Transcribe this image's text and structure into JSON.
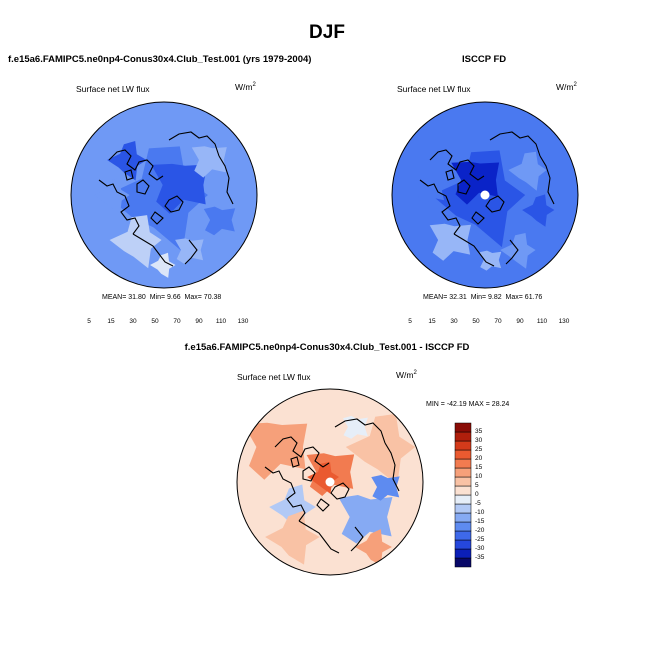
{
  "title": "DJF",
  "panels": {
    "model": {
      "title": "f.e15a6.FAMIPC5.ne0np4-Conus30x4.Club_Test.001 (yrs 1979-2004)",
      "variable": "Surface net LW flux",
      "units_base": "W/m",
      "units_exp": "2",
      "stats": {
        "mean_label": "MEAN=",
        "mean": "31.80",
        "min_label": "Min=",
        "min": "9.66",
        "max_label": "Max=",
        "max": "70.38"
      }
    },
    "obs": {
      "title": "ISCCP FD",
      "variable": "Surface net LW flux",
      "units_base": "W/m",
      "units_exp": "2",
      "stats": {
        "mean_label": "MEAN=",
        "mean": "32.31",
        "min_label": "Min=",
        "min": "9.82",
        "max_label": "Max=",
        "max": "61.76"
      }
    },
    "diff": {
      "title": "f.e15a6.FAMIPC5.ne0np4-Conus30x4.Club_Test.001 - ISCCP FD",
      "variable": "Surface net LW flux",
      "units_base": "W/m",
      "units_exp": "2",
      "stats": {
        "min_label": "MIN =",
        "min": "-42.19",
        "max_label": "MAX =",
        "max": "28.24"
      }
    }
  },
  "chart_data": [
    {
      "type": "heatmap",
      "projection": "polar-stereographic-north",
      "title": "Surface net LW flux — model (DJF)",
      "colorbar": {
        "orientation": "horizontal",
        "levels": [
          5,
          10,
          15,
          20,
          30,
          40,
          50,
          60,
          70,
          80,
          90,
          100,
          110,
          120,
          130
        ],
        "tick_labels": [
          "5",
          "15",
          "30",
          "50",
          "70",
          "90",
          "110",
          "130"
        ],
        "colors": [
          "#08086a",
          "#0a23c8",
          "#2a55e6",
          "#4a79f0",
          "#6f99f5",
          "#97b6f7",
          "#bdd0f7",
          "#dce6f8",
          "#f3f6fb",
          "#fcd9c6",
          "#f9b398",
          "#f08a67",
          "#e0583e",
          "#c42a1c",
          "#980d0b",
          "#6b0505"
        ]
      },
      "stats": {
        "mean": 31.8,
        "min": 9.66,
        "max": 70.38
      }
    },
    {
      "type": "heatmap",
      "projection": "polar-stereographic-north",
      "title": "Surface net LW flux — ISCCP FD (DJF)",
      "colorbar": {
        "orientation": "horizontal",
        "levels": [
          5,
          10,
          15,
          20,
          30,
          40,
          50,
          60,
          70,
          80,
          90,
          100,
          110,
          120,
          130
        ],
        "tick_labels": [
          "5",
          "15",
          "30",
          "50",
          "70",
          "90",
          "110",
          "130"
        ],
        "colors": [
          "#08086a",
          "#0a23c8",
          "#2a55e6",
          "#4a79f0",
          "#6f99f5",
          "#97b6f7",
          "#bdd0f7",
          "#dce6f8",
          "#f3f6fb",
          "#fcd9c6",
          "#f9b398",
          "#f08a67",
          "#e0583e",
          "#c42a1c",
          "#980d0b",
          "#6b0505"
        ]
      },
      "stats": {
        "mean": 32.31,
        "min": 9.82,
        "max": 61.76
      }
    },
    {
      "type": "heatmap",
      "projection": "polar-stereographic-north",
      "title": "Surface net LW flux — model minus ISCCP FD (DJF)",
      "colorbar": {
        "orientation": "vertical",
        "levels": [
          -35,
          -30,
          -25,
          -20,
          -15,
          -10,
          -5,
          0,
          5,
          10,
          15,
          20,
          25,
          30,
          35
        ],
        "tick_labels": [
          "35",
          "30",
          "25",
          "20",
          "15",
          "10",
          "5",
          "0",
          "-5",
          "-10",
          "-15",
          "-20",
          "-25",
          "-30",
          "-35"
        ],
        "colors": [
          "#080868",
          "#0b1fb8",
          "#2547dc",
          "#3e69ea",
          "#5e8bf0",
          "#86aaf3",
          "#b2c9f5",
          "#e6eef8",
          "#fbe1d2",
          "#f9c2a5",
          "#f6a07a",
          "#f27b50",
          "#ea5a30",
          "#d43a1a",
          "#b01f0c",
          "#8a0c06"
        ]
      },
      "stats": {
        "min": -42.19,
        "max": 28.24
      }
    }
  ]
}
